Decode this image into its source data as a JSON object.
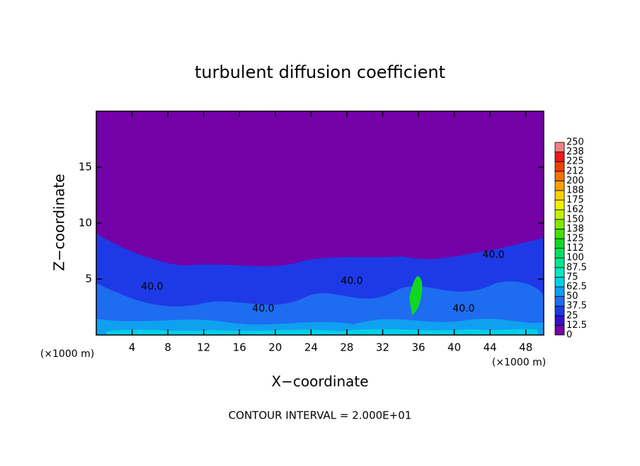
{
  "chart_data": {
    "type": "contour",
    "title": "turbulent diffusion coefficient",
    "xlabel": "X−coordinate",
    "ylabel": "Z−coordinate",
    "x_unit": "(×1000 m)",
    "x_unit_right": "(×1000 m)",
    "footer": "CONTOUR INTERVAL = 2.000E+01",
    "xlim": [
      0,
      50
    ],
    "ylim": [
      0,
      20
    ],
    "xticks": [
      4,
      8,
      12,
      16,
      20,
      24,
      28,
      32,
      36,
      40,
      44,
      48
    ],
    "yticks": [
      5,
      10,
      15
    ],
    "contour_labels": [
      "40.0",
      "40.0",
      "40.0",
      "40.0",
      "40.0"
    ],
    "levels": [
      0,
      12.5,
      25,
      37.5,
      50,
      62.5,
      75,
      87.5,
      100,
      {
        "value": 112.5,
        "label": "112"
      },
      125,
      {
        "value": 137.5,
        "label": "138"
      },
      150,
      {
        "value": 162.5,
        "label": "162"
      },
      175,
      {
        "value": 187.5,
        "label": "188"
      },
      200,
      {
        "value": 212.5,
        "label": "212"
      },
      225,
      {
        "value": 237.5,
        "label": "238"
      },
      250
    ],
    "colors": [
      "#7400a8",
      "#3410cc",
      "#1e3ae6",
      "#1e6cf0",
      "#10a0f0",
      "#00d0e8",
      "#00e8c0",
      "#00e890",
      "#00e060",
      "#10d820",
      "#40e000",
      "#80e800",
      "#c0f000",
      "#f0f000",
      "#f8d000",
      "#f8a000",
      "#f87000",
      "#f04000",
      "#f01818",
      "#f08080"
    ]
  }
}
